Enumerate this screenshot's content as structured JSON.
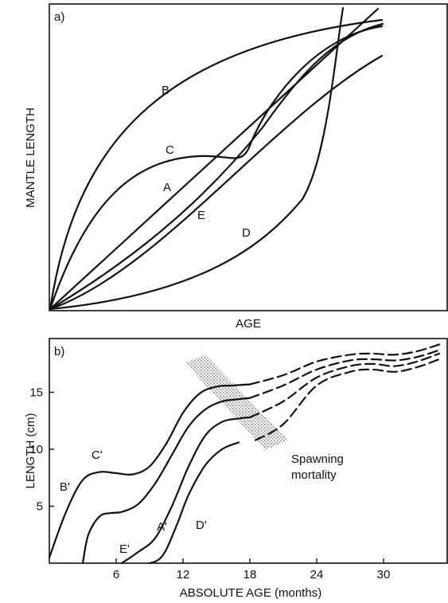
{
  "chart_data": [
    {
      "type": "line",
      "panel_label": "a)",
      "xlabel": "AGE",
      "ylabel": "MANTLE LENGTH",
      "series": [
        {
          "name": "A",
          "label": "A"
        },
        {
          "name": "B",
          "label": "B"
        },
        {
          "name": "C",
          "label": "C"
        },
        {
          "name": "D",
          "label": "D"
        },
        {
          "name": "E",
          "label": "E"
        }
      ]
    },
    {
      "type": "line",
      "panel_label": "b)",
      "xlabel": "ABSOLUTE AGE (months)",
      "ylabel": "LENGTH (cm)",
      "xticks": [
        "6",
        "12",
        "18",
        "24",
        "30"
      ],
      "yticks": [
        "5",
        "10",
        "15"
      ],
      "xlim": [
        0,
        35
      ],
      "ylim": [
        0,
        19.5
      ],
      "annotation": "Spawning mortality",
      "annotation_lines": [
        "Spawning",
        "mortality"
      ],
      "series": [
        {
          "name": "B'",
          "label": "B'",
          "x": [
            0,
            1.5,
            3,
            4.5,
            6,
            7.5,
            9,
            10.5,
            12,
            13.5,
            15,
            16.5,
            18,
            21,
            24,
            27,
            29,
            31,
            33,
            35
          ],
          "y": [
            0.5,
            4.5,
            7.3,
            8.0,
            7.9,
            7.8,
            8.5,
            10.5,
            13.2,
            14.9,
            15.5,
            15.6,
            15.7,
            16.5,
            17.7,
            18.3,
            18.4,
            18.3,
            18.6,
            19.2
          ]
        },
        {
          "name": "C'",
          "label": "C'"
        },
        {
          "name": "A'",
          "label": "A'",
          "x": [
            3,
            3.5,
            4.5,
            5.5,
            6.5,
            8,
            9.5,
            11,
            12.5,
            14,
            15.5,
            17,
            18,
            21,
            24,
            27,
            29,
            31,
            33,
            35
          ],
          "y": [
            0,
            2.5,
            4.1,
            4.4,
            4.5,
            5.2,
            7.0,
            9.5,
            12.0,
            13.5,
            14.2,
            14.4,
            14.5,
            15.6,
            17.0,
            17.8,
            17.9,
            17.8,
            18.1,
            18.7
          ]
        },
        {
          "name": "E'",
          "label": "E'",
          "x": [
            6.5,
            8,
            9.5,
            11,
            12.5,
            14,
            15.5,
            17,
            18,
            21,
            24,
            27,
            29,
            31,
            33,
            35
          ],
          "y": [
            0,
            1.0,
            2.2,
            5.0,
            8.5,
            11.2,
            12.4,
            12.7,
            12.8,
            14.2,
            16.3,
            17.3,
            17.5,
            17.3,
            17.7,
            18.4
          ]
        },
        {
          "name": "D'",
          "label": "D'",
          "x": [
            9,
            9.8,
            10.5,
            11.5,
            12.5,
            14,
            15.5,
            17,
            18.5,
            21,
            24,
            27,
            29,
            31,
            33,
            35
          ],
          "y": [
            0,
            0.3,
            1.2,
            3.5,
            6.0,
            8.6,
            10.0,
            10.6,
            10.8,
            12.2,
            15.6,
            16.8,
            17.0,
            16.8,
            17.2,
            17.9
          ]
        }
      ]
    }
  ]
}
